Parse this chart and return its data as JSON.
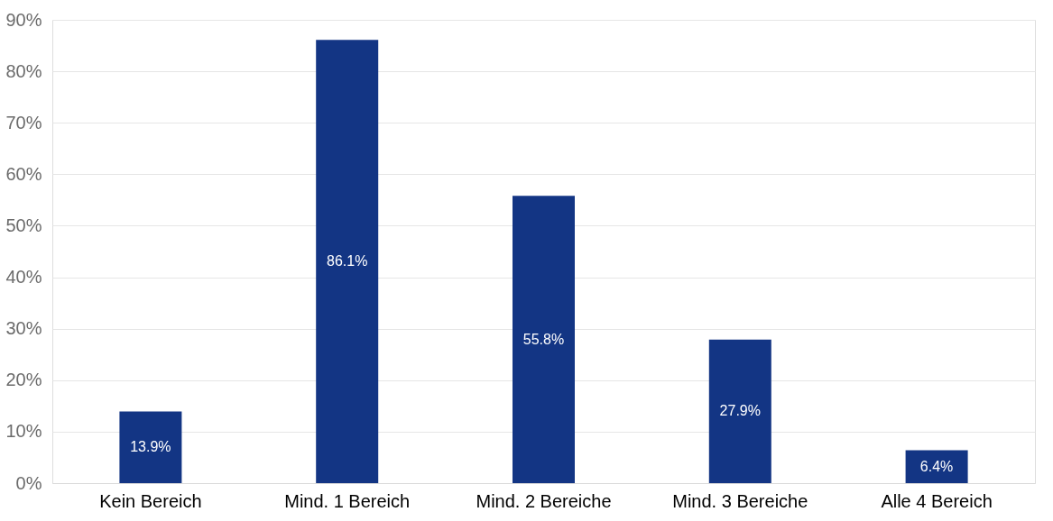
{
  "chart_data": {
    "type": "bar",
    "categories": [
      "Kein Bereich",
      "Mind. 1 Bereich",
      "Mind. 2 Bereiche",
      "Mind. 3 Bereiche",
      "Alle 4 Bereich"
    ],
    "values": [
      13.9,
      86.1,
      55.8,
      27.9,
      6.4
    ],
    "color": "#133584",
    "value_labels": [
      "13.9%",
      "86.1%",
      "55.8%",
      "27.9%",
      "6.4%"
    ],
    "ylim": [
      0,
      90
    ],
    "yticks": [
      {
        "value": 0,
        "label": "0%"
      },
      {
        "value": 10,
        "label": "10%"
      },
      {
        "value": 20,
        "label": "20%"
      },
      {
        "value": 30,
        "label": "30%"
      },
      {
        "value": 40,
        "label": "40%"
      },
      {
        "value": 50,
        "label": "50%"
      },
      {
        "value": 60,
        "label": "60%"
      },
      {
        "value": 70,
        "label": "70%"
      },
      {
        "value": 80,
        "label": "80%"
      },
      {
        "value": 90,
        "label": "90%"
      }
    ],
    "grid": "y"
  }
}
